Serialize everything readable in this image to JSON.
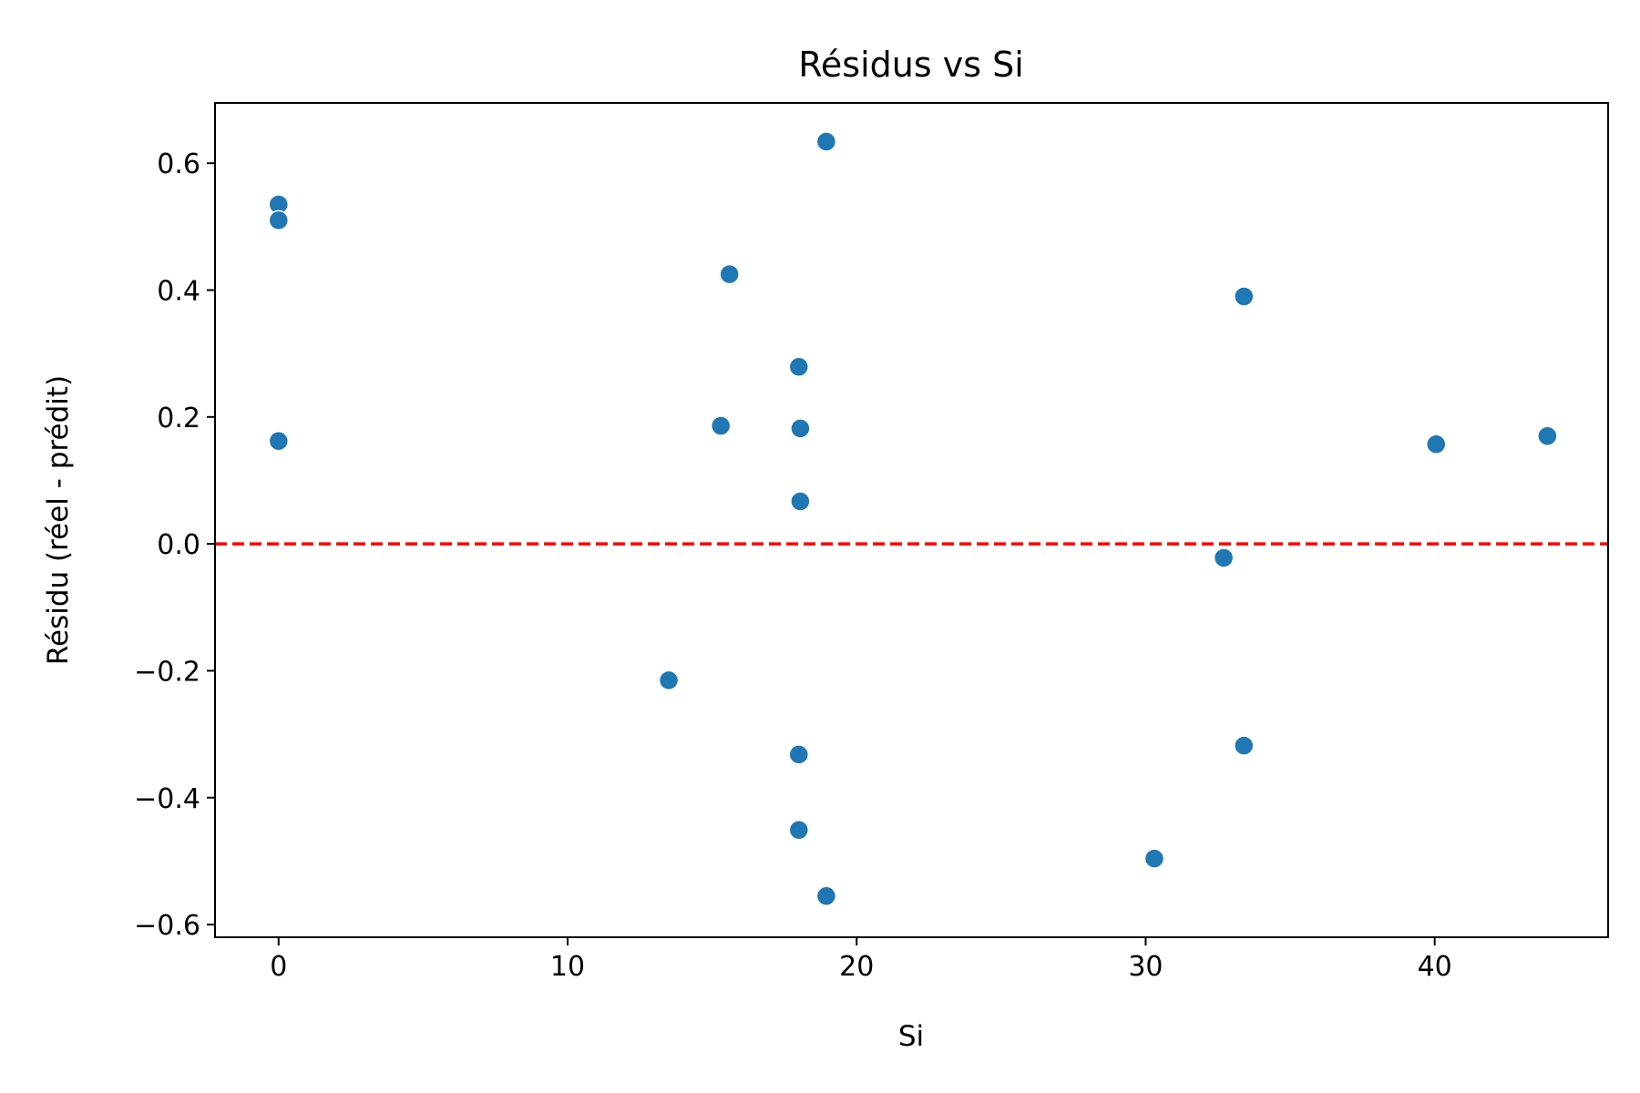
{
  "chart_data": {
    "type": "scatter",
    "title": "Résidus vs Si",
    "xlabel": "Si",
    "ylabel": "Résidu (réel - prédit)",
    "xlim": [
      -2.2,
      46.0
    ],
    "ylim": [
      -0.62,
      0.695
    ],
    "xticks": [
      0,
      10,
      20,
      30,
      40
    ],
    "yticks": [
      -0.6,
      -0.4,
      -0.2,
      0.0,
      0.2,
      0.4,
      0.6
    ],
    "xtick_labels": [
      "0",
      "10",
      "20",
      "30",
      "40"
    ],
    "ytick_labels": [
      "−0.6",
      "−0.4",
      "−0.2",
      "0.0",
      "0.2",
      "0.4",
      "0.6"
    ],
    "grid": false,
    "reference_line": {
      "y": 0.0,
      "style": "dashed",
      "color": "#ff0000"
    },
    "marker_color": "#1f77b4",
    "points": [
      {
        "x": 0.0,
        "y": 0.535
      },
      {
        "x": 0.0,
        "y": 0.51
      },
      {
        "x": 0.0,
        "y": 0.162
      },
      {
        "x": 13.5,
        "y": -0.215
      },
      {
        "x": 15.3,
        "y": 0.186
      },
      {
        "x": 15.6,
        "y": 0.425
      },
      {
        "x": 18.0,
        "y": 0.279
      },
      {
        "x": 18.05,
        "y": 0.182
      },
      {
        "x": 18.05,
        "y": 0.067
      },
      {
        "x": 18.0,
        "y": -0.332
      },
      {
        "x": 18.0,
        "y": -0.451
      },
      {
        "x": 18.95,
        "y": 0.634
      },
      {
        "x": 18.95,
        "y": -0.555
      },
      {
        "x": 30.3,
        "y": -0.496
      },
      {
        "x": 32.7,
        "y": -0.022
      },
      {
        "x": 33.4,
        "y": 0.39
      },
      {
        "x": 33.4,
        "y": -0.318
      },
      {
        "x": 40.05,
        "y": 0.157
      },
      {
        "x": 43.9,
        "y": 0.17
      }
    ]
  }
}
